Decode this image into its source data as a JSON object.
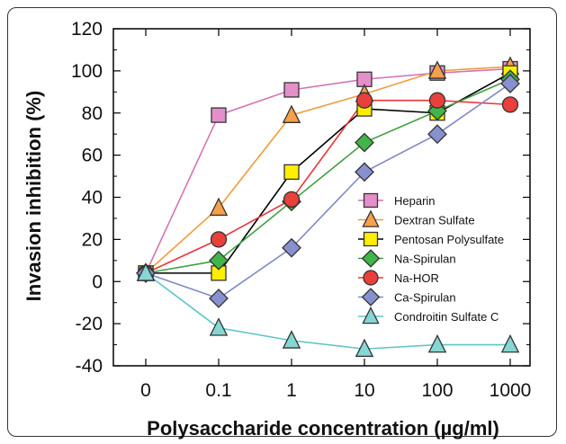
{
  "chart_data": {
    "type": "line",
    "title": "",
    "xlabel": "Polysaccharide concentration (µg/ml)",
    "ylabel": "Invasion inhibition (%)",
    "categories": [
      "0",
      "0.1",
      "1",
      "10",
      "100",
      "1000"
    ],
    "ylim": [
      -40,
      120
    ],
    "yticks": [
      "120",
      "100",
      "80",
      "60",
      "40",
      "20",
      "0",
      "-20",
      "-40"
    ],
    "ytick_values": [
      120,
      100,
      80,
      60,
      40,
      20,
      0,
      -20,
      -40
    ],
    "grid": false,
    "legend_position": "right",
    "series": [
      {
        "name": "Heparin",
        "marker": "square",
        "line_color": "#d473b4",
        "fill": "#e48fc9",
        "values": [
          4,
          79,
          91,
          96,
          99,
          101
        ]
      },
      {
        "name": "Dextran Sulfate",
        "marker": "triangle",
        "line_color": "#f39a3c",
        "fill": "#f5a04a",
        "values": [
          4,
          35,
          79,
          89,
          100,
          102
        ]
      },
      {
        "name": "Pentosan Polysulfate",
        "marker": "square",
        "line_color": "#000000",
        "fill": "#ffee00",
        "values": [
          4,
          4,
          52,
          82,
          80,
          99
        ]
      },
      {
        "name": "Na-Spirulan",
        "marker": "diamond",
        "line_color": "#3fa040",
        "fill": "#3fb54a",
        "values": [
          4,
          10,
          38,
          66,
          81,
          96
        ]
      },
      {
        "name": "Na-HOR",
        "marker": "circle",
        "line_color": "#e8373c",
        "fill": "#e8403a",
        "values": [
          4,
          20,
          39,
          86,
          86,
          84
        ]
      },
      {
        "name": "Ca-Spirulan",
        "marker": "diamond",
        "line_color": "#7f89c7",
        "fill": "#8791d0",
        "values": [
          4,
          -8,
          16,
          52,
          70,
          94
        ]
      },
      {
        "name": "Condroitin Sulfate C",
        "marker": "triangle",
        "line_color": "#5cc7c6",
        "fill": "#86d6d4",
        "values": [
          4,
          -22,
          -28,
          -32,
          -30,
          -30
        ]
      }
    ]
  }
}
